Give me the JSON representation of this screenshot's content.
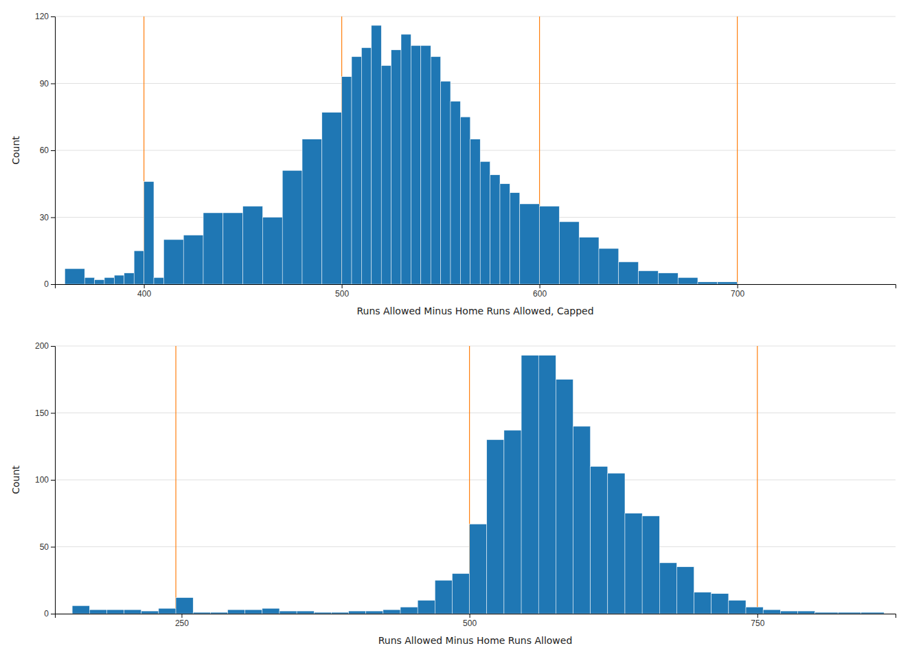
{
  "chart_data": [
    {
      "type": "histogram",
      "bins": [
        360,
        370,
        375,
        380,
        385,
        390,
        395,
        400,
        405,
        410,
        420,
        430,
        440,
        450,
        460,
        470,
        480,
        490,
        500,
        505,
        510,
        515,
        520,
        525,
        530,
        535,
        540,
        545,
        550,
        555,
        560,
        565,
        570,
        575,
        580,
        585,
        590,
        600,
        610,
        620,
        630,
        640,
        650,
        660,
        670,
        680,
        690,
        700,
        710,
        720,
        730,
        740,
        750,
        760,
        770
      ],
      "values": [
        7,
        3,
        2,
        3,
        4,
        5,
        15,
        46,
        3,
        20,
        22,
        32,
        32,
        35,
        30,
        51,
        65,
        77,
        93,
        102,
        106,
        116,
        98,
        105,
        112,
        107,
        107,
        102,
        91,
        82,
        75,
        65,
        55,
        49,
        45,
        41,
        36,
        35,
        28,
        21,
        16,
        10,
        6,
        5,
        3,
        1,
        1,
        0,
        0,
        0,
        0,
        0,
        0,
        0
      ],
      "xlabel": "Runs Allowed Minus Home Runs Allowed, Capped",
      "ylabel": "Count",
      "xlim": [
        355,
        780
      ],
      "xticks": [
        400,
        500,
        600,
        700
      ],
      "ylim": [
        0,
        120
      ],
      "yticks": [
        0,
        30,
        60,
        90,
        120
      ],
      "vlines": [
        400,
        500,
        600,
        700
      ],
      "grid": true
    },
    {
      "type": "histogram",
      "bins": [
        155,
        170,
        185,
        200,
        215,
        230,
        245,
        260,
        275,
        290,
        305,
        320,
        335,
        350,
        365,
        380,
        395,
        410,
        425,
        440,
        455,
        470,
        485,
        500,
        515,
        530,
        545,
        560,
        575,
        590,
        605,
        620,
        635,
        650,
        665,
        680,
        695,
        710,
        725,
        740,
        755,
        770,
        785,
        800,
        820,
        840,
        860
      ],
      "values": [
        6,
        3,
        3,
        3,
        2,
        4,
        12,
        1,
        1,
        3,
        3,
        4,
        2,
        2,
        1,
        1,
        2,
        2,
        3,
        5,
        10,
        25,
        30,
        67,
        130,
        137,
        193,
        193,
        175,
        140,
        110,
        105,
        75,
        73,
        38,
        35,
        16,
        15,
        10,
        5,
        3,
        2,
        2,
        1,
        1,
        1
      ],
      "xlabel": "Runs Allowed Minus Home Runs Allowed",
      "ylabel": "Count",
      "xlim": [
        140,
        870
      ],
      "xticks": [
        250,
        500,
        750
      ],
      "ylim": [
        0,
        200
      ],
      "yticks": [
        0,
        50,
        100,
        150,
        200
      ],
      "vlines": [
        245,
        500,
        750
      ],
      "grid": true
    }
  ]
}
